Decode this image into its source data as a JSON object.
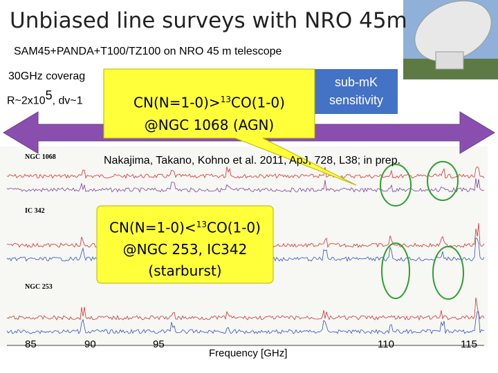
{
  "slide": {
    "title": "Unbiased line surveys with NRO 45m",
    "subtitle": "SAM45+PANDA+T100/TZ100 on NRO 45 m telescope",
    "coverage": [
      "30GHz coverag",
      "R~2x10",
      "5",
      ", dv~1"
    ],
    "sensitivity": [
      "sub-mK",
      "sensitivity"
    ],
    "reference": "Nakajima, Takano, Kohno et al. 2011, ApJ, 728, L38; in prep.",
    "callout_agn": {
      "line1": [
        "CN(N=1-0)>",
        "13",
        "CO(1-0)"
      ],
      "line2": "@NGC 1068 (AGN)"
    },
    "callout_sb": {
      "line1": [
        "CN(N=1-0)<",
        "13",
        "CO(1-0)"
      ],
      "line2": "@NGC 253, IC342",
      "line3": "(starburst)"
    },
    "panels": [
      "NGC 1068",
      "IC 342",
      "NGC 253"
    ],
    "x_axis": {
      "label": "Frequency [GHz]",
      "ticks": [
        85,
        90,
        95,
        110,
        115
      ]
    }
  }
}
